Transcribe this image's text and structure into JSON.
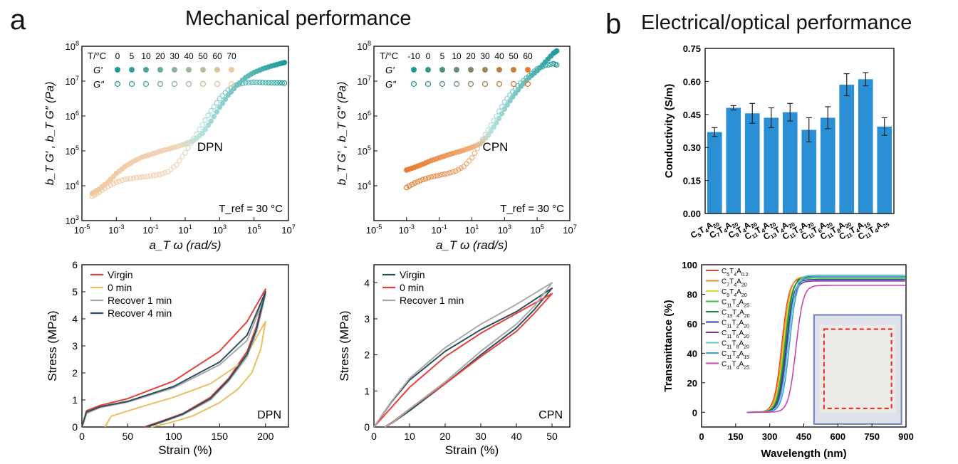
{
  "header": {
    "panel_a": "a",
    "panel_a_title": "Mechanical performance",
    "panel_b": "b",
    "panel_b_title": "Electrical/optical performance"
  },
  "colors": {
    "teal": "#1a9a97",
    "light_teal": "#8fd3cf",
    "orange": "#e87a2e",
    "peach": "#f3c79e",
    "bar_blue": "#2b8fd6",
    "virgin_red": "#e8413a",
    "zero_min_yellow": "#e8c060",
    "recover1_gray": "#a9a9a9",
    "recover4_navy": "#2a4f5e"
  },
  "chart_data": [
    {
      "id": "dpn-master",
      "type": "scatter",
      "annotation": "DPN",
      "tref_label": "T_ref = 30 °C",
      "xlabel": "a_T ω (rad/s)",
      "ylabel": "b_T G′ , b_T G″ (Pa)",
      "x_log": true,
      "y_log": true,
      "xlim_exp": [
        -5,
        7
      ],
      "ylim_exp": [
        3,
        8
      ],
      "x_ticks": [
        "10-5",
        "10-3",
        "10-1",
        "101",
        "103",
        "105",
        "107"
      ],
      "y_ticks": [
        "103",
        "104",
        "105",
        "106",
        "107",
        "108"
      ],
      "legend": {
        "temp_label": "T/°C",
        "temps": [
          "0",
          "5",
          "10",
          "20",
          "30",
          "40",
          "50",
          "60",
          "70"
        ],
        "gprime": "G'",
        "gdprime": "G\""
      },
      "series": [
        {
          "name": "G'",
          "points": [
            [
              -4.4,
              3.78
            ],
            [
              -4.0,
              3.9
            ],
            [
              -3.5,
              4.1
            ],
            [
              -3.0,
              4.35
            ],
            [
              -2.5,
              4.55
            ],
            [
              -2.0,
              4.7
            ],
            [
              -1.5,
              4.82
            ],
            [
              -1.0,
              4.9
            ],
            [
              -0.5,
              4.98
            ],
            [
              0.0,
              5.05
            ],
            [
              0.5,
              5.12
            ],
            [
              1.0,
              5.2
            ],
            [
              1.5,
              5.3
            ],
            [
              2.0,
              5.5
            ],
            [
              2.5,
              5.85
            ],
            [
              3.0,
              6.25
            ],
            [
              3.5,
              6.6
            ],
            [
              4.0,
              6.88
            ],
            [
              4.5,
              7.1
            ],
            [
              5.0,
              7.25
            ],
            [
              5.5,
              7.35
            ],
            [
              6.0,
              7.43
            ],
            [
              6.5,
              7.5
            ],
            [
              6.9,
              7.55
            ]
          ]
        },
        {
          "name": "G\"",
          "points": [
            [
              -4.4,
              3.7
            ],
            [
              -4.0,
              3.82
            ],
            [
              -3.5,
              3.98
            ],
            [
              -3.0,
              4.1
            ],
            [
              -2.5,
              4.18
            ],
            [
              -2.0,
              4.22
            ],
            [
              -1.5,
              4.25
            ],
            [
              -1.0,
              4.28
            ],
            [
              -0.5,
              4.32
            ],
            [
              0.0,
              4.4
            ],
            [
              0.5,
              4.6
            ],
            [
              1.0,
              4.95
            ],
            [
              1.5,
              5.35
            ],
            [
              2.0,
              5.75
            ],
            [
              2.5,
              6.15
            ],
            [
              3.0,
              6.5
            ],
            [
              3.5,
              6.75
            ],
            [
              4.0,
              6.9
            ],
            [
              4.5,
              6.95
            ],
            [
              5.0,
              6.97
            ],
            [
              5.5,
              6.96
            ],
            [
              6.0,
              6.95
            ],
            [
              6.5,
              6.95
            ],
            [
              6.9,
              6.94
            ]
          ]
        }
      ]
    },
    {
      "id": "cpn-master",
      "type": "scatter",
      "annotation": "CPN",
      "tref_label": "T_ref = 30 °C",
      "xlabel": "a_T ω (rad/s)",
      "ylabel": "b_T G′ , b_T G″ (Pa)",
      "x_log": true,
      "y_log": true,
      "xlim_exp": [
        -5,
        7
      ],
      "ylim_exp": [
        3,
        8
      ],
      "x_ticks": [
        "10-5",
        "10-3",
        "10-1",
        "101",
        "103",
        "105",
        "107"
      ],
      "y_ticks": [
        "104",
        "105",
        "106",
        "107",
        "108"
      ],
      "legend": {
        "temp_label": "T/°C",
        "temps": [
          "-10",
          "0",
          "5",
          "10",
          "20",
          "30",
          "40",
          "50",
          "60"
        ],
        "gprime": "G'",
        "gdprime": "G\""
      },
      "series": [
        {
          "name": "G'",
          "points": [
            [
              -3.0,
              4.45
            ],
            [
              -2.5,
              4.53
            ],
            [
              -2.0,
              4.62
            ],
            [
              -1.5,
              4.72
            ],
            [
              -1.0,
              4.8
            ],
            [
              -0.5,
              4.88
            ],
            [
              0.0,
              4.95
            ],
            [
              0.5,
              5.02
            ],
            [
              1.0,
              5.1
            ],
            [
              1.5,
              5.2
            ],
            [
              2.0,
              5.45
            ],
            [
              2.5,
              5.8
            ],
            [
              3.0,
              6.2
            ],
            [
              3.5,
              6.55
            ],
            [
              4.0,
              6.85
            ],
            [
              4.5,
              7.1
            ],
            [
              5.0,
              7.3
            ],
            [
              5.5,
              7.55
            ],
            [
              6.0,
              7.8
            ],
            [
              6.3,
              7.9
            ]
          ]
        },
        {
          "name": "G\"",
          "points": [
            [
              -3.0,
              3.95
            ],
            [
              -2.5,
              4.08
            ],
            [
              -2.0,
              4.18
            ],
            [
              -1.5,
              4.25
            ],
            [
              -1.0,
              4.3
            ],
            [
              -0.5,
              4.35
            ],
            [
              0.0,
              4.42
            ],
            [
              0.5,
              4.55
            ],
            [
              1.0,
              4.8
            ],
            [
              1.5,
              5.2
            ],
            [
              2.0,
              5.6
            ],
            [
              2.5,
              6.0
            ],
            [
              3.0,
              6.4
            ],
            [
              3.5,
              6.7
            ],
            [
              4.0,
              6.95
            ],
            [
              4.5,
              7.15
            ],
            [
              5.0,
              7.35
            ],
            [
              5.5,
              7.45
            ],
            [
              6.0,
              7.5
            ],
            [
              6.3,
              7.45
            ]
          ]
        }
      ]
    },
    {
      "id": "conductivity",
      "type": "bar",
      "ylabel": "Conductivity (S/m)",
      "ylim": [
        0,
        0.75
      ],
      "y_ticks": [
        "0.00",
        "0.15",
        "0.30",
        "0.45",
        "0.60",
        "0.75"
      ],
      "categories": [
        "C5T4A20",
        "C7T4A20",
        "C9T4A20",
        "C11T4A20",
        "C13T4A20",
        "C11T2A20",
        "C11T6A20",
        "C11T8A20",
        "C11T4A15",
        "C11T4A25"
      ],
      "values": [
        0.37,
        0.48,
        0.455,
        0.435,
        0.46,
        0.38,
        0.435,
        0.585,
        0.61,
        0.395
      ],
      "errors": [
        0.02,
        0.01,
        0.045,
        0.045,
        0.04,
        0.055,
        0.05,
        0.05,
        0.03,
        0.04
      ]
    },
    {
      "id": "stress-dpn",
      "type": "line",
      "annotation": "DPN",
      "xlabel": "Strain (%)",
      "ylabel": "Stress (MPa)",
      "xlim": [
        0,
        225
      ],
      "ylim": [
        0,
        6
      ],
      "x_ticks": [
        "0",
        "50",
        "100",
        "150",
        "200"
      ],
      "y_ticks": [
        "0",
        "1",
        "2",
        "3",
        "4",
        "5",
        "6"
      ],
      "series": [
        {
          "name": "Virgin",
          "points": [
            [
              0,
              0
            ],
            [
              5,
              0.6
            ],
            [
              20,
              0.8
            ],
            [
              50,
              1.05
            ],
            [
              100,
              1.7
            ],
            [
              150,
              2.8
            ],
            [
              180,
              3.9
            ],
            [
              200,
              5.1
            ],
            [
              190,
              3.7
            ],
            [
              180,
              2.8
            ],
            [
              160,
              1.8
            ],
            [
              140,
              1.1
            ],
            [
              110,
              0.5
            ],
            [
              85,
              0.2
            ],
            [
              68,
              0
            ]
          ]
        },
        {
          "name": "0 min",
          "points": [
            [
              25,
              0
            ],
            [
              32,
              0.4
            ],
            [
              60,
              0.7
            ],
            [
              100,
              1.1
            ],
            [
              140,
              1.6
            ],
            [
              175,
              2.4
            ],
            [
              200,
              3.9
            ],
            [
              195,
              2.9
            ],
            [
              185,
              2.0
            ],
            [
              170,
              1.4
            ],
            [
              150,
              0.9
            ],
            [
              120,
              0.4
            ],
            [
              95,
              0.15
            ],
            [
              75,
              0
            ]
          ]
        },
        {
          "name": "Recover 1 min",
          "points": [
            [
              0,
              0
            ],
            [
              5,
              0.5
            ],
            [
              20,
              0.72
            ],
            [
              50,
              0.92
            ],
            [
              100,
              1.45
            ],
            [
              150,
              2.3
            ],
            [
              180,
              3.2
            ],
            [
              200,
              4.9
            ],
            [
              190,
              3.5
            ],
            [
              180,
              2.6
            ],
            [
              160,
              1.7
            ],
            [
              140,
              1.0
            ],
            [
              110,
              0.45
            ],
            [
              85,
              0.15
            ],
            [
              70,
              0
            ]
          ]
        },
        {
          "name": "Recover 4 min",
          "points": [
            [
              0,
              0
            ],
            [
              5,
              0.55
            ],
            [
              20,
              0.75
            ],
            [
              50,
              0.95
            ],
            [
              100,
              1.5
            ],
            [
              150,
              2.4
            ],
            [
              180,
              3.4
            ],
            [
              200,
              5.0
            ],
            [
              190,
              3.6
            ],
            [
              180,
              2.7
            ],
            [
              160,
              1.75
            ],
            [
              140,
              1.05
            ],
            [
              110,
              0.48
            ],
            [
              85,
              0.17
            ],
            [
              70,
              0
            ]
          ]
        }
      ]
    },
    {
      "id": "stress-cpn",
      "type": "line",
      "annotation": "CPN",
      "xlabel": "Strain (%)",
      "ylabel": "Stress (MPa)",
      "xlim": [
        0,
        55
      ],
      "ylim": [
        0,
        4.5
      ],
      "x_ticks": [
        "0",
        "10",
        "20",
        "30",
        "40",
        "50"
      ],
      "y_ticks": [
        "0",
        "1",
        "2",
        "3",
        "4"
      ],
      "series": [
        {
          "name": "Virgin",
          "points": [
            [
              0,
              0
            ],
            [
              5,
              0.7
            ],
            [
              10,
              1.3
            ],
            [
              20,
              2.1
            ],
            [
              30,
              2.7
            ],
            [
              40,
              3.2
            ],
            [
              50,
              3.85
            ],
            [
              45,
              3.25
            ],
            [
              40,
              2.75
            ],
            [
              30,
              2.0
            ],
            [
              20,
              1.2
            ],
            [
              10,
              0.45
            ],
            [
              5,
              0.1
            ],
            [
              3,
              0
            ]
          ]
        },
        {
          "name": "0 min",
          "points": [
            [
              0,
              0
            ],
            [
              5,
              0.55
            ],
            [
              10,
              1.1
            ],
            [
              20,
              1.95
            ],
            [
              30,
              2.6
            ],
            [
              40,
              3.15
            ],
            [
              50,
              3.7
            ],
            [
              45,
              3.15
            ],
            [
              40,
              2.65
            ],
            [
              30,
              1.95
            ],
            [
              20,
              1.2
            ],
            [
              10,
              0.5
            ],
            [
              5,
              0.12
            ],
            [
              3,
              0
            ]
          ]
        },
        {
          "name": "Recover 1 min",
          "points": [
            [
              0,
              0
            ],
            [
              5,
              0.72
            ],
            [
              10,
              1.35
            ],
            [
              20,
              2.2
            ],
            [
              30,
              2.85
            ],
            [
              40,
              3.4
            ],
            [
              50,
              4.0
            ],
            [
              45,
              3.35
            ],
            [
              40,
              2.85
            ],
            [
              30,
              2.1
            ],
            [
              20,
              1.25
            ],
            [
              10,
              0.5
            ],
            [
              5,
              0.1
            ],
            [
              3,
              0
            ]
          ]
        }
      ]
    },
    {
      "id": "transmittance",
      "type": "line",
      "xlabel": "Wavelength (nm)",
      "ylabel": "Transmittance (%)",
      "xlim": [
        0,
        900
      ],
      "ylim": [
        -10,
        100
      ],
      "x_ticks": [
        "0",
        "150",
        "300",
        "450",
        "600",
        "750",
        "900"
      ],
      "y_ticks": [
        "0",
        "20",
        "40",
        "60",
        "80",
        "100"
      ],
      "series": [
        {
          "name": "C5T4A0.2",
          "color": "#e8413a",
          "edge": 318,
          "plateau": 91
        },
        {
          "name": "C7T4A20",
          "color": "#f08a24",
          "edge": 322,
          "plateau": 92
        },
        {
          "name": "C9T4A20",
          "color": "#e6d31a",
          "edge": 326,
          "plateau": 90
        },
        {
          "name": "C11T4A25",
          "color": "#3fbf3f",
          "edge": 330,
          "plateau": 91
        },
        {
          "name": "C13T4A20",
          "color": "#1f8a3a",
          "edge": 334,
          "plateau": 92
        },
        {
          "name": "C11T2A20",
          "color": "#2b3fa8",
          "edge": 338,
          "plateau": 90
        },
        {
          "name": "C11T6A20",
          "color": "#8a2c9a",
          "edge": 342,
          "plateau": 89
        },
        {
          "name": "C11T8A20",
          "color": "#5fc9c9",
          "edge": 346,
          "plateau": 93
        },
        {
          "name": "C11T4A15",
          "color": "#3aa0e0",
          "edge": 352,
          "plateau": 92
        },
        {
          "name": "C11T4A25",
          "color": "#c545b0",
          "edge": 380,
          "plateau": 86
        }
      ]
    }
  ],
  "legends": {
    "stress_dpn": [
      "Virgin",
      "0 min",
      "Recover 1 min",
      "Recover 4 min"
    ],
    "stress_cpn": [
      "Virgin",
      "0 min",
      "Recover 1 min"
    ]
  },
  "inset": {
    "description_label": ""
  }
}
